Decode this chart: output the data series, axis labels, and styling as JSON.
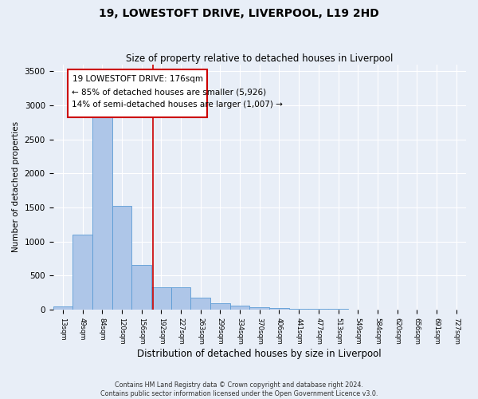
{
  "title_line1": "19, LOWESTOFT DRIVE, LIVERPOOL, L19 2HD",
  "title_line2": "Size of property relative to detached houses in Liverpool",
  "xlabel": "Distribution of detached houses by size in Liverpool",
  "ylabel": "Number of detached properties",
  "footnote1": "Contains HM Land Registry data © Crown copyright and database right 2024.",
  "footnote2": "Contains public sector information licensed under the Open Government Licence v3.0.",
  "bin_labels": [
    "13sqm",
    "49sqm",
    "84sqm",
    "120sqm",
    "156sqm",
    "192sqm",
    "227sqm",
    "263sqm",
    "299sqm",
    "334sqm",
    "370sqm",
    "406sqm",
    "441sqm",
    "477sqm",
    "513sqm",
    "549sqm",
    "584sqm",
    "620sqm",
    "656sqm",
    "691sqm",
    "727sqm"
  ],
  "bar_heights": [
    50,
    1100,
    2950,
    1520,
    650,
    330,
    330,
    175,
    90,
    60,
    35,
    20,
    5,
    5,
    5,
    2,
    2,
    2,
    2,
    0,
    0
  ],
  "bar_color": "#aec6e8",
  "bar_edge_color": "#5b9bd5",
  "property_label": "19 LOWESTOFT DRIVE: 176sqm",
  "pct_smaller": "85% of detached houses are smaller (5,926)",
  "pct_larger": "14% of semi-detached houses are larger (1,007)",
  "vline_color": "#cc0000",
  "annotation_box_color": "#cc0000",
  "ylim": [
    0,
    3600
  ],
  "yticks": [
    0,
    500,
    1000,
    1500,
    2000,
    2500,
    3000,
    3500
  ],
  "bg_color": "#e8eef7",
  "plot_bg_color": "#e8eef7",
  "grid_color": "#ffffff",
  "vline_x": 4.57
}
